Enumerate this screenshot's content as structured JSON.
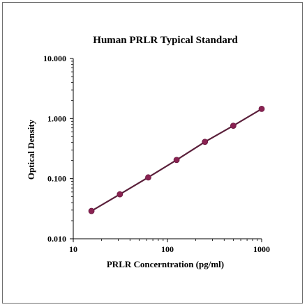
{
  "chart_data": {
    "type": "line",
    "title": "Human PRLR Typical Standard",
    "xlabel": "PRLR Concerntration (pg/ml)",
    "ylabel": "Optical Density",
    "x_scale": "log",
    "y_scale": "log",
    "xlim": [
      10,
      1000
    ],
    "ylim": [
      0.01,
      10
    ],
    "x_ticks": [
      10,
      100,
      1000
    ],
    "x_tick_labels": [
      "10",
      "100",
      "1000"
    ],
    "y_ticks": [
      0.01,
      0.1,
      1,
      10
    ],
    "y_tick_labels": [
      "0.010",
      "0.100",
      "1.000",
      "10.000"
    ],
    "grid": false,
    "legend": "none",
    "series": [
      {
        "x": [
          15.6,
          31.25,
          62.5,
          125,
          250,
          500,
          1000
        ],
        "y": [
          0.029,
          0.055,
          0.105,
          0.205,
          0.41,
          0.76,
          1.45
        ],
        "color": "#8a2252"
      }
    ],
    "line_color": "#5a1f3a"
  }
}
